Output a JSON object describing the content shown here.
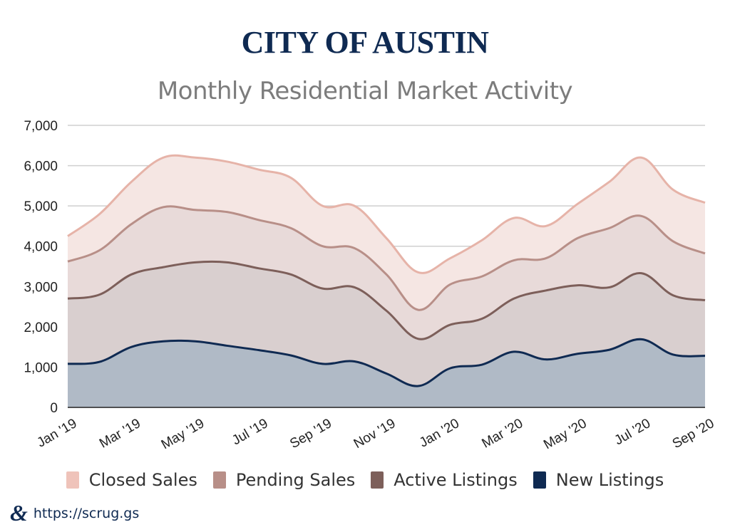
{
  "header": {
    "title": "CITY OF AUSTIN",
    "subtitle": "Monthly Residential Market Activity"
  },
  "footer": {
    "logo_glyph": "&",
    "url": "https://scrug.gs"
  },
  "chart_data": {
    "type": "area",
    "title": "Monthly Residential Market Activity",
    "xlabel": "",
    "ylabel": "",
    "ylim": [
      0,
      7000
    ],
    "yticks": [
      0,
      1000,
      2000,
      3000,
      4000,
      5000,
      6000,
      7000
    ],
    "ytick_labels": [
      "0",
      "1,000",
      "2,000",
      "3,000",
      "4,000",
      "5,000",
      "6,000",
      "7,000"
    ],
    "grid": true,
    "legend_position": "bottom",
    "x": [
      "Jan '19",
      "Feb '19",
      "Mar '19",
      "Apr '19",
      "May '19",
      "Jun '19",
      "Jul '19",
      "Aug '19",
      "Sep '19",
      "Oct '19",
      "Nov '19",
      "Dec '19",
      "Jan '20",
      "Feb '20",
      "Mar '20",
      "Apr '20",
      "May '20",
      "Jun '20",
      "Jul '20",
      "Aug '20",
      "Sep '20"
    ],
    "xtick_labels": [
      "Jan '19",
      "Mar '19",
      "May '19",
      "Jul '19",
      "Sep '19",
      "Nov '19",
      "Jan '20",
      "Mar '20",
      "May '20",
      "Jul '20",
      "Sep '20"
    ],
    "series": [
      {
        "name": "Closed Sales",
        "color": "#e6b3a8",
        "fill": "#f5e6e3",
        "values": [
          4250,
          4800,
          5600,
          6200,
          6200,
          6100,
          5900,
          5700,
          5000,
          5000,
          4200,
          3350,
          3700,
          4150,
          4700,
          4500,
          5050,
          5600,
          6200,
          5400,
          5080
        ]
      },
      {
        "name": "Pending Sales",
        "color": "#b88f88",
        "fill": "#e8dad9",
        "values": [
          3620,
          3900,
          4550,
          4970,
          4900,
          4850,
          4650,
          4450,
          4000,
          3950,
          3300,
          2420,
          3050,
          3250,
          3650,
          3700,
          4200,
          4450,
          4750,
          4120,
          3820
        ]
      },
      {
        "name": "Active Listings",
        "color": "#7d5f5a",
        "fill": "#d9cfcf",
        "values": [
          2700,
          2800,
          3300,
          3480,
          3600,
          3600,
          3450,
          3300,
          2950,
          2980,
          2400,
          1700,
          2050,
          2200,
          2700,
          2900,
          3030,
          2980,
          3330,
          2780,
          2660
        ]
      },
      {
        "name": "New Listings",
        "color": "#0f2a52",
        "fill": "#b0bac6",
        "values": [
          1080,
          1130,
          1500,
          1640,
          1640,
          1530,
          1420,
          1290,
          1080,
          1140,
          840,
          530,
          970,
          1060,
          1380,
          1190,
          1330,
          1430,
          1690,
          1310,
          1280
        ]
      }
    ]
  }
}
